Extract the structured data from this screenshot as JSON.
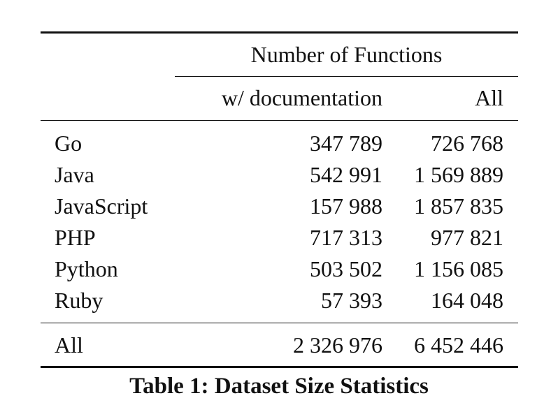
{
  "table": {
    "group_header": "Number of Functions",
    "column_headers": [
      "w/ documentation",
      "All"
    ],
    "rows": [
      {
        "language": "Go",
        "documented": "347 789",
        "all": "726 768"
      },
      {
        "language": "Java",
        "documented": "542 991",
        "all": "1 569 889"
      },
      {
        "language": "JavaScript",
        "documented": "157 988",
        "all": "1 857 835"
      },
      {
        "language": "PHP",
        "documented": "717 313",
        "all": "977 821"
      },
      {
        "language": "Python",
        "documented": "503 502",
        "all": "1 156 085"
      },
      {
        "language": "Ruby",
        "documented": "57 393",
        "all": "164 048"
      }
    ],
    "total": {
      "label": "All",
      "documented": "2 326 976",
      "all": "6 452 446"
    }
  },
  "caption": "Table 1: Dataset Size Statistics"
}
